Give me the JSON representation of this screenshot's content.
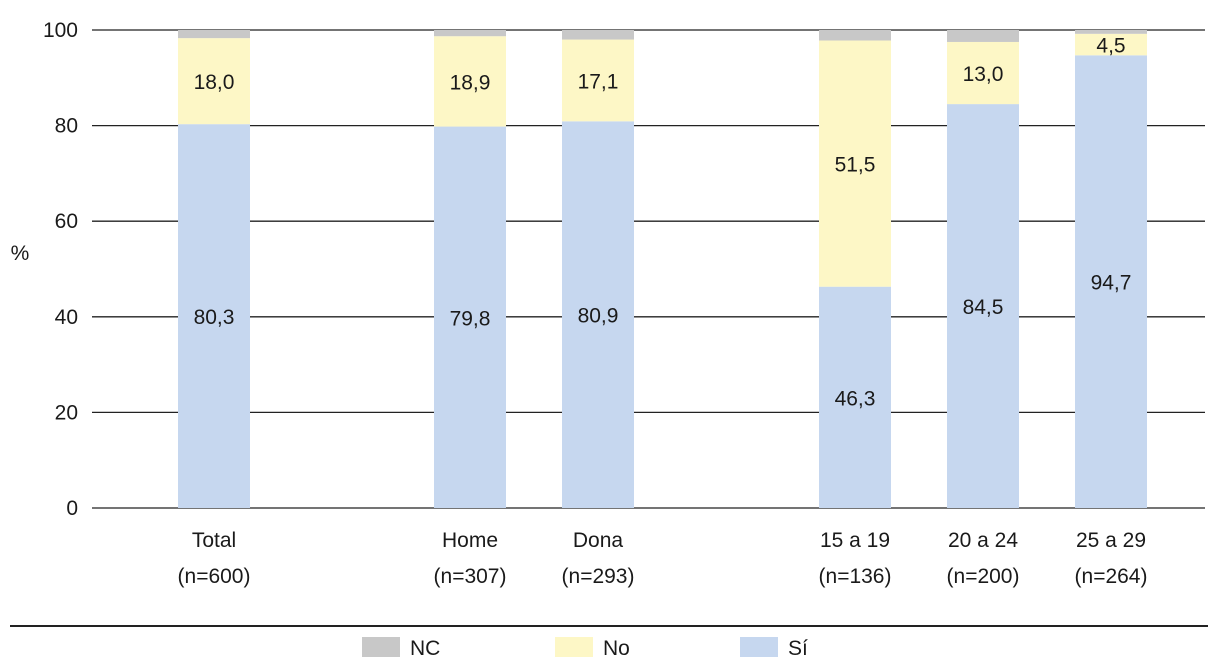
{
  "chart_data": {
    "type": "bar",
    "stacked": true,
    "ylabel": "%",
    "ylim": [
      0,
      100
    ],
    "yticks": [
      0,
      20,
      40,
      60,
      80,
      100
    ],
    "grid": true,
    "legend_position": "bottom",
    "categories": [
      {
        "label": "Total",
        "n": "(n=600)"
      },
      {
        "label": "Home",
        "n": "(n=307)"
      },
      {
        "label": "Dona",
        "n": "(n=293)"
      },
      {
        "label": "15 a 19",
        "n": "(n=136)"
      },
      {
        "label": "20 a 24",
        "n": "(n=200)"
      },
      {
        "label": "25 a 29",
        "n": "(n=264)"
      }
    ],
    "series": [
      {
        "name": "Sí",
        "color": "#c6d7ef",
        "values": [
          80.3,
          79.8,
          80.9,
          46.3,
          84.5,
          94.7
        ],
        "labels": [
          "80,3",
          "79,8",
          "80,9",
          "46,3",
          "84,5",
          "94,7"
        ]
      },
      {
        "name": "No",
        "color": "#fdf7c6",
        "values": [
          18.0,
          18.9,
          17.1,
          51.5,
          13.0,
          4.5
        ],
        "labels": [
          "18,0",
          "18,9",
          "17,1",
          "51,5",
          "13,0",
          "4,5"
        ]
      },
      {
        "name": "NC",
        "color": "#c8c8c8",
        "values": [
          1.7,
          1.3,
          2.0,
          2.2,
          2.5,
          0.8
        ],
        "labels": [
          "",
          "",
          "",
          "",
          "",
          ""
        ]
      }
    ],
    "legend_order": [
      "NC",
      "No",
      "Sí"
    ]
  }
}
